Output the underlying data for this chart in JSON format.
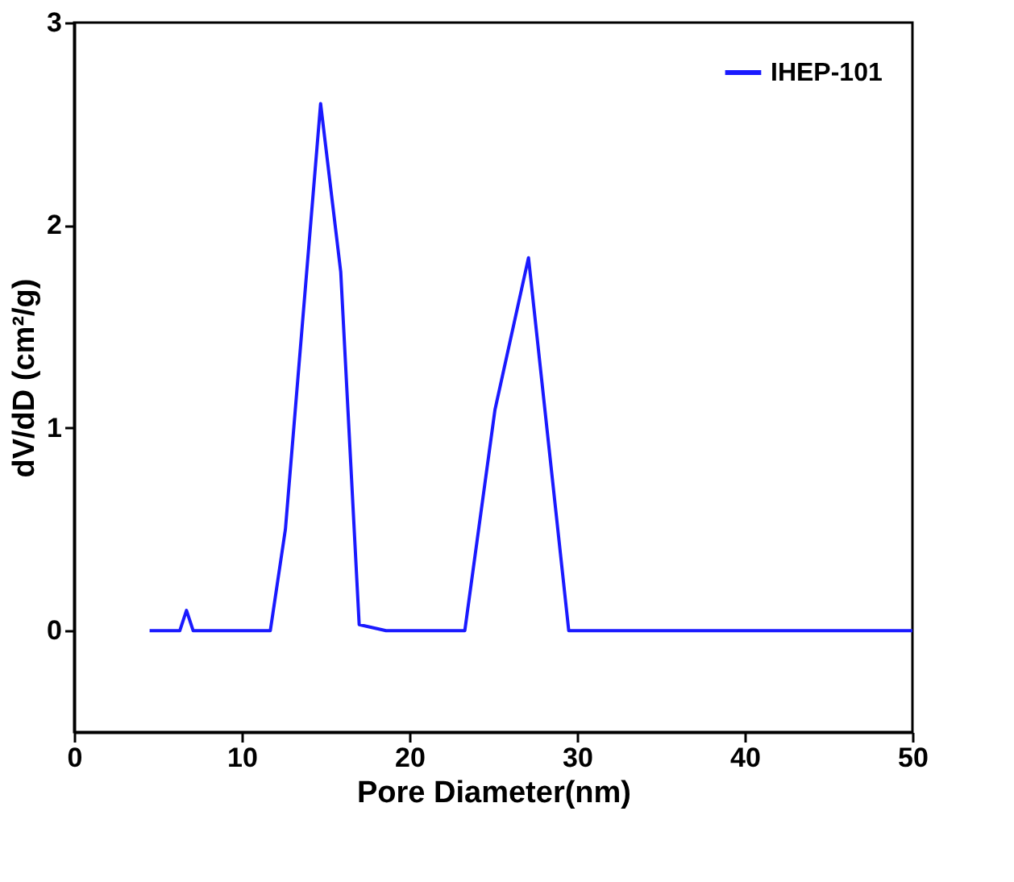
{
  "chart_data": {
    "type": "line",
    "xlabel": "Pore Diameter(nm)",
    "ylabel": "dV/dD (cm²/g)",
    "xlim": [
      0,
      50
    ],
    "xticks": [
      0,
      10,
      20,
      30,
      40,
      50
    ],
    "ylim": [
      -0.5,
      3
    ],
    "yticks": [
      0,
      1,
      2,
      3
    ],
    "grid": false,
    "legend": "top right",
    "marker": "none",
    "line_style": "solid",
    "series": [
      {
        "name": "IHEP-101",
        "color": "#1a1aff",
        "x": [
          4.5,
          6.3,
          6.7,
          7.1,
          11.7,
          12.6,
          14.7,
          15.9,
          17.0,
          18.6,
          23.3,
          25.1,
          27.1,
          29.5,
          50
        ],
        "values": [
          0,
          0,
          0.1,
          0,
          0,
          0.5,
          2.6,
          1.77,
          0.03,
          0,
          0,
          1.09,
          1.84,
          0,
          0
        ]
      }
    ]
  }
}
